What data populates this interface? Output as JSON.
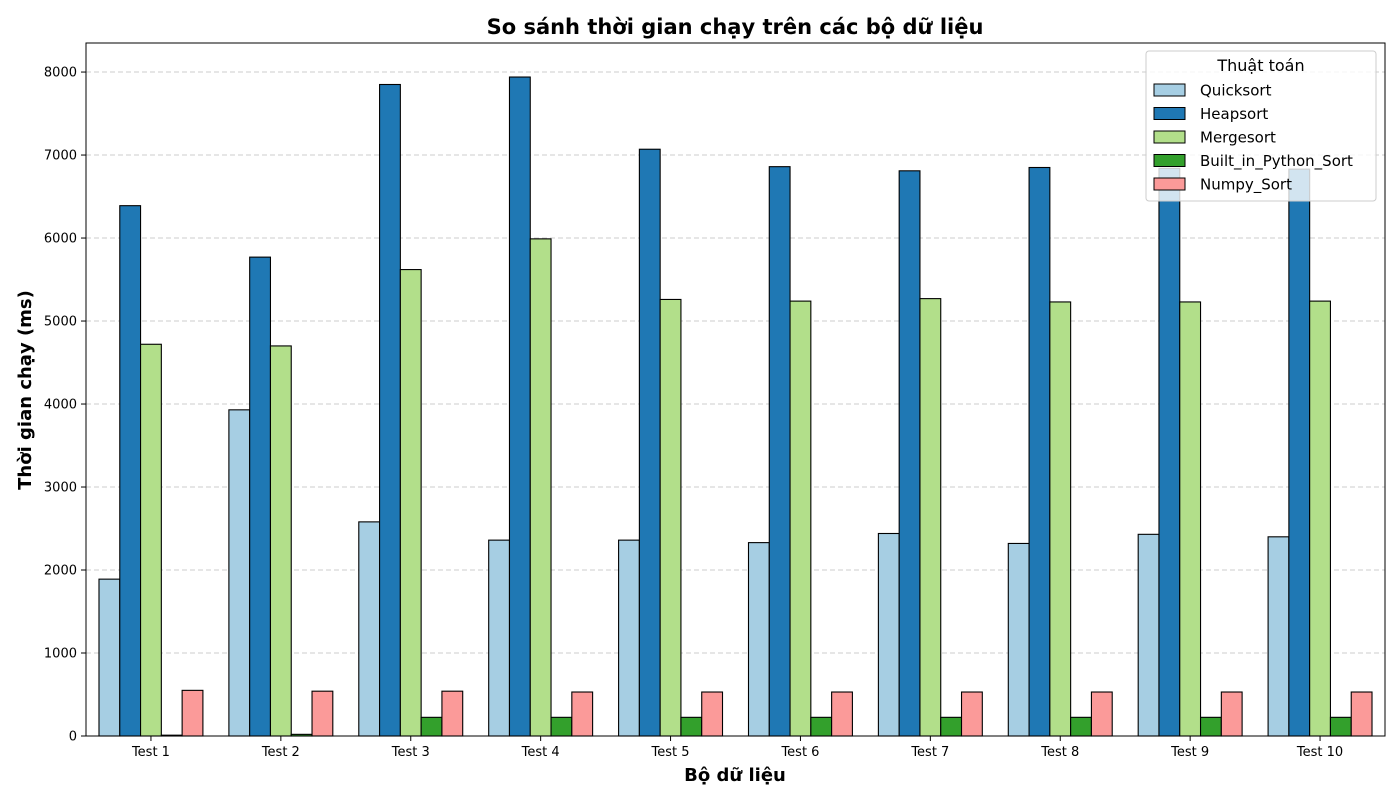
{
  "chart_data": {
    "type": "bar",
    "title": "So sánh thời gian chạy trên các bộ dữ liệu",
    "xlabel": "Bộ dữ liệu",
    "ylabel": "Thời gian chạy (ms)",
    "ylim": [
      0,
      8350
    ],
    "yticks": [
      0,
      1000,
      2000,
      3000,
      4000,
      5000,
      6000,
      7000,
      8000
    ],
    "grid": "y dashed",
    "legend": {
      "title": "Thuật toán",
      "placement": "top-right"
    },
    "categories": [
      "Test 1",
      "Test 2",
      "Test 3",
      "Test 4",
      "Test 5",
      "Test 6",
      "Test 7",
      "Test 8",
      "Test 9",
      "Test 10"
    ],
    "series": [
      {
        "name": "Quicksort",
        "color": "#a6cee3",
        "values": [
          1890,
          3930,
          2580,
          2360,
          2360,
          2330,
          2440,
          2320,
          2430,
          2400
        ]
      },
      {
        "name": "Heapsort",
        "color": "#1f78b4",
        "values": [
          6390,
          5770,
          7850,
          7940,
          7070,
          6860,
          6810,
          6850,
          6840,
          6830
        ]
      },
      {
        "name": "Mergesort",
        "color": "#b2df8a",
        "values": [
          4720,
          4700,
          5620,
          5990,
          5260,
          5240,
          5270,
          5230,
          5230,
          5240
        ]
      },
      {
        "name": "Built_in_Python_Sort",
        "color": "#33a02c",
        "values": [
          10,
          20,
          225,
          225,
          225,
          225,
          225,
          225,
          225,
          225
        ]
      },
      {
        "name": "Numpy_Sort",
        "color": "#fb9a99",
        "values": [
          550,
          540,
          540,
          530,
          530,
          530,
          530,
          530,
          530,
          530
        ]
      }
    ]
  }
}
